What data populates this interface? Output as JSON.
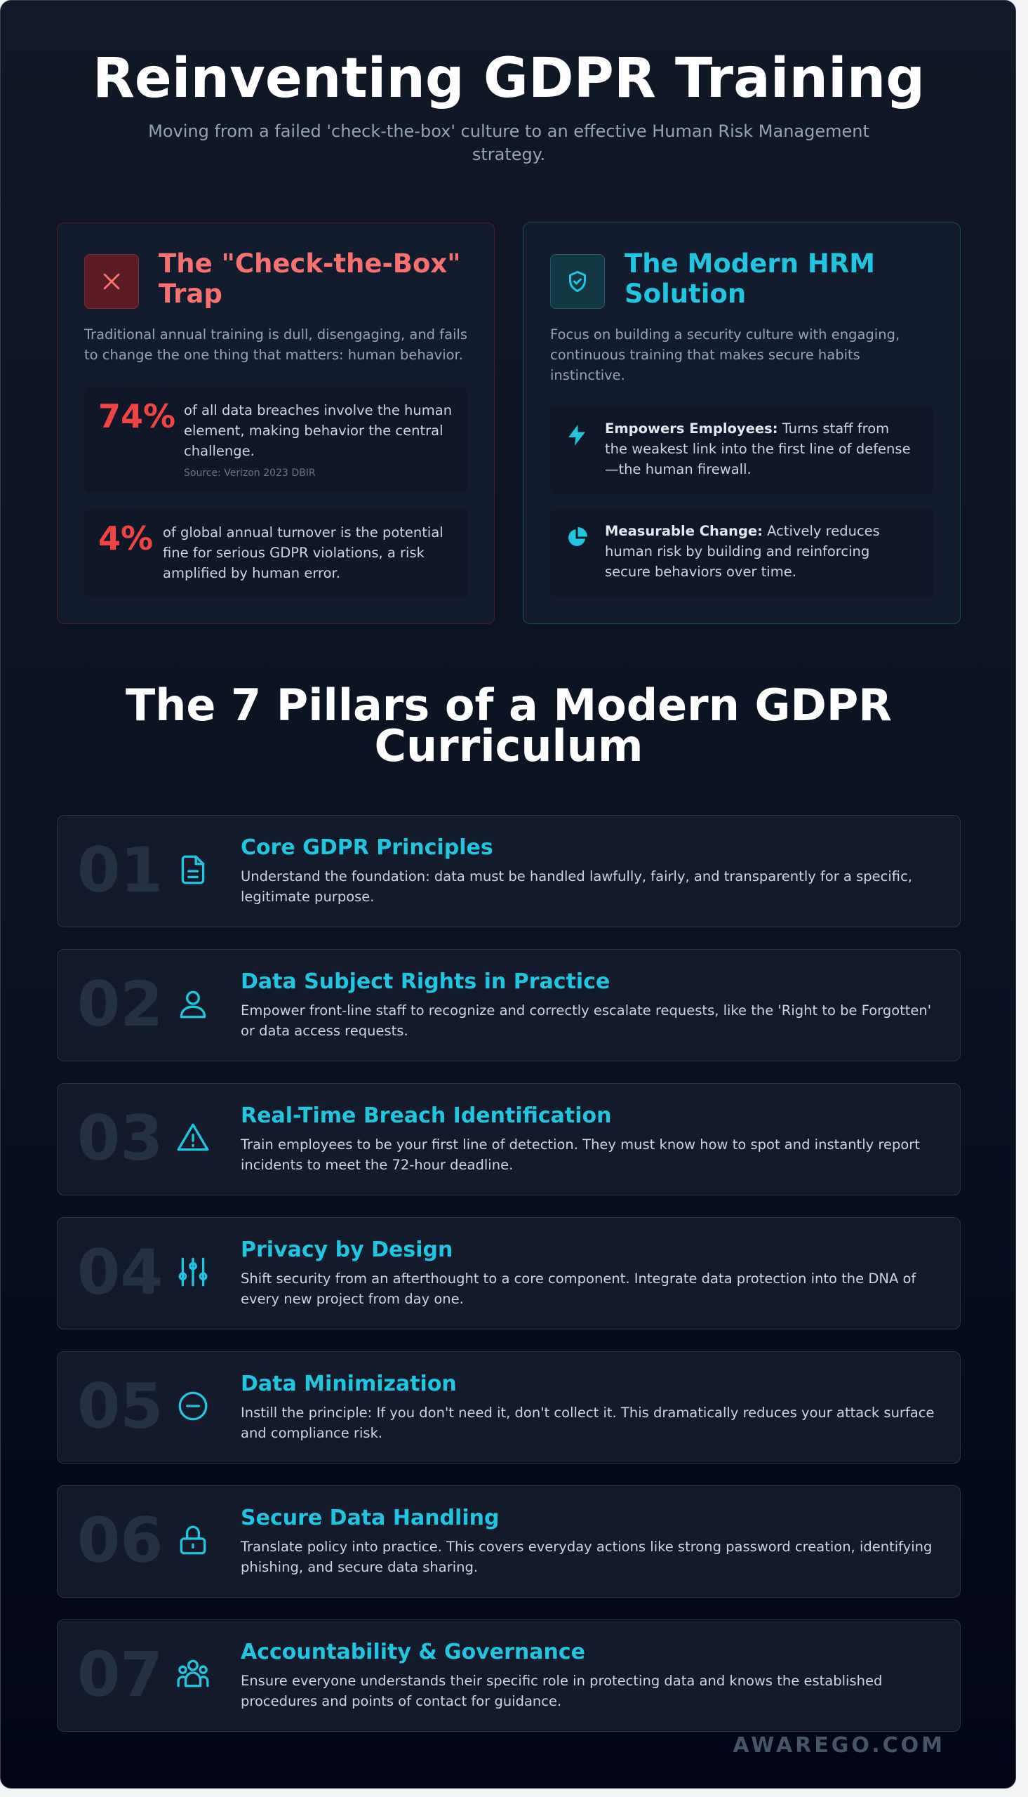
{
  "header": {
    "title": "Reinventing GDPR Training",
    "subtitle": "Moving from a failed 'check-the-box' culture to an effective Human Risk Management strategy."
  },
  "problem": {
    "title": "The \"Check-the-Box\" Trap",
    "intro": "Traditional annual training is dull, disengaging, and fails to change the one thing that matters: human behavior.",
    "stats": [
      {
        "value": "74%",
        "text": "of all data breaches involve the human element, making behavior the central challenge.",
        "source": "Source: Verizon 2023 DBIR"
      },
      {
        "value": "4%",
        "text": "of global annual turnover is the potential fine for serious GDPR violations, a risk amplified by human error."
      }
    ]
  },
  "solution": {
    "title": "The Modern HRM Solution",
    "intro": "Focus on building a security culture with engaging, continuous training that makes secure habits instinctive.",
    "points": [
      {
        "label": "Empowers Employees:",
        "text": "Turns staff from the weakest link into the first line of defense—the human firewall."
      },
      {
        "label": "Measurable Change:",
        "text": "Actively reduces human risk by building and reinforcing secure behaviors over time."
      }
    ]
  },
  "pillars": {
    "heading": "The 7 Pillars of a Modern GDPR Curriculum",
    "items": [
      {
        "number": "01",
        "title": "Core GDPR Principles",
        "text": "Understand the foundation: data must be handled lawfully, fairly, and transparently for a specific, legitimate purpose."
      },
      {
        "number": "02",
        "title": "Data Subject Rights in Practice",
        "text": "Empower front-line staff to recognize and correctly escalate requests, like the 'Right to be Forgotten' or data access requests."
      },
      {
        "number": "03",
        "title": "Real-Time Breach Identification",
        "text": "Train employees to be your first line of detection. They must know how to spot and instantly report incidents to meet the 72-hour deadline."
      },
      {
        "number": "04",
        "title": "Privacy by Design",
        "text": "Shift security from an afterthought to a core component. Integrate data protection into the DNA of every new project from day one."
      },
      {
        "number": "05",
        "title": "Data Minimization",
        "text": "Instill the principle: If you don't need it, don't collect it. This dramatically reduces your attack surface and compliance risk."
      },
      {
        "number": "06",
        "title": "Secure Data Handling",
        "text": "Translate policy into practice. This covers everyday actions like strong password creation, identifying phishing, and secure data sharing."
      },
      {
        "number": "07",
        "title": "Accountability & Governance",
        "text": "Ensure everyone understands their specific role in protecting data and knows the established procedures and points of contact for guidance."
      }
    ]
  },
  "footer": "AWAREGO.COM"
}
